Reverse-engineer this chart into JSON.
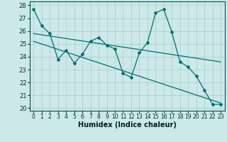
{
  "title": "",
  "xlabel": "Humidex (Indice chaleur)",
  "bg_color": "#cce8e8",
  "line_color": "#007070",
  "grid_color": "#aacccc",
  "xlim": [
    -0.5,
    23.5
  ],
  "ylim": [
    19.8,
    28.3
  ],
  "yticks": [
    20,
    21,
    22,
    23,
    24,
    25,
    26,
    27,
    28
  ],
  "xticks": [
    0,
    1,
    2,
    3,
    4,
    5,
    6,
    7,
    8,
    9,
    10,
    11,
    12,
    13,
    14,
    15,
    16,
    17,
    18,
    19,
    20,
    21,
    22,
    23
  ],
  "data_x": [
    0,
    1,
    2,
    3,
    4,
    5,
    6,
    7,
    8,
    9,
    10,
    11,
    12,
    13,
    14,
    15,
    16,
    17,
    18,
    19,
    20,
    21,
    22,
    23
  ],
  "data_y": [
    27.7,
    26.4,
    25.8,
    23.8,
    24.5,
    23.5,
    24.2,
    25.2,
    25.5,
    24.9,
    24.6,
    22.7,
    22.4,
    24.3,
    25.1,
    27.4,
    27.7,
    25.9,
    23.6,
    23.2,
    22.5,
    21.4,
    20.3,
    20.3
  ],
  "trend1_x": [
    0,
    23
  ],
  "trend1_y": [
    25.8,
    23.6
  ],
  "trend2_x": [
    0,
    23
  ],
  "trend2_y": [
    25.2,
    20.4
  ]
}
